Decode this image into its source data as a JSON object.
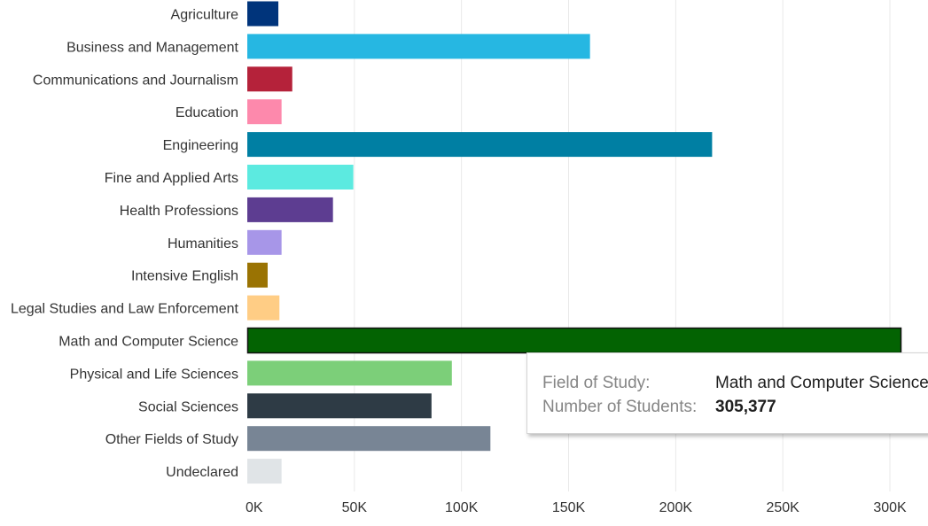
{
  "chart_data": {
    "type": "bar",
    "orientation": "horizontal",
    "categories": [
      "Agriculture",
      "Business and Management",
      "Communications and Journalism",
      "Education",
      "Engineering",
      "Fine and Applied Arts",
      "Health Professions",
      "Humanities",
      "Intensive English",
      "Legal Studies and Law Enforcement",
      "Math and Computer Science",
      "Physical and Life Sciences",
      "Social Sciences",
      "Other Fields of Study",
      "Undeclared"
    ],
    "values": [
      14500,
      160000,
      21000,
      16000,
      217000,
      49500,
      40000,
      16000,
      9500,
      15000,
      305377,
      95500,
      86000,
      113500,
      16000
    ],
    "colors": [
      "#00347b",
      "#26b7e2",
      "#b5223a",
      "#fd89ac",
      "#007fa3",
      "#5ceae0",
      "#5d3d91",
      "#a796e8",
      "#9a7303",
      "#ffcd85",
      "#036302",
      "#7ccf79",
      "#2e3b45",
      "#788595",
      "#e0e4e7"
    ],
    "xlim": [
      0,
      305377
    ],
    "x_ticks": [
      0,
      50000,
      100000,
      150000,
      200000,
      250000,
      300000
    ],
    "x_tick_labels": [
      "0K",
      "50K",
      "100K",
      "150K",
      "200K",
      "250K",
      "300K"
    ],
    "highlighted_index": 10,
    "grid": true
  },
  "tooltip": {
    "field_label": "Field of Study:",
    "field_value": "Math and Computer Science",
    "count_label": "Number of Students:",
    "count_value": "305,377"
  }
}
